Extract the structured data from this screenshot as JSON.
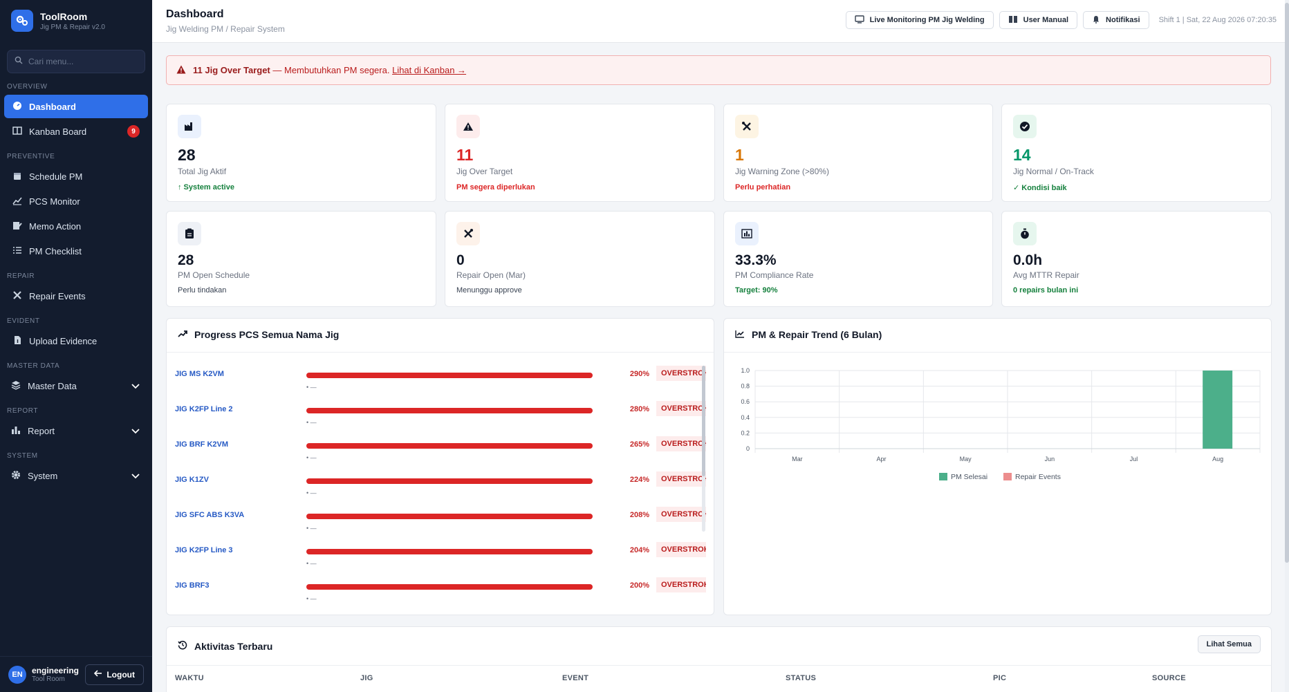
{
  "brand": {
    "title": "ToolRoom",
    "subtitle": "Jig PM & Repair v2.0"
  },
  "search": {
    "placeholder": "Cari menu..."
  },
  "nav": {
    "overview_label": "OVERVIEW",
    "dashboard": "Dashboard",
    "kanban": "Kanban Board",
    "kanban_badge": "9",
    "preventive_label": "PREVENTIVE",
    "schedule_pm": "Schedule PM",
    "pcs_monitor": "PCS Monitor",
    "memo_action": "Memo Action",
    "pm_checklist": "PM Checklist",
    "repair_label": "REPAIR",
    "repair_events": "Repair Events",
    "evident_label": "EVIDENT",
    "upload_evidence": "Upload Evidence",
    "master_label": "MASTER DATA",
    "master_data": "Master Data",
    "report_label": "REPORT",
    "report": "Report",
    "system_label": "SYSTEM",
    "system": "System"
  },
  "user": {
    "initials": "EN",
    "name": "engineering",
    "role": "Tool Room",
    "logout": "Logout"
  },
  "header": {
    "title": "Dashboard",
    "subtitle": "Jig Welding PM / Repair System",
    "live_btn": "Live Monitoring PM Jig Welding",
    "manual_btn": "User Manual",
    "notif_btn": "Notifikasi",
    "shift": "Shift 1 | Sat, 22 Aug 2026 07:20:35"
  },
  "alert": {
    "strong": "11 Jig Over Target",
    "text": " — Membutuhkan PM segera. ",
    "link": "Lihat di Kanban →"
  },
  "stats": [
    {
      "value": "28",
      "label": "Total Jig Aktif",
      "note": "↑ System active",
      "icon": "factory-icon",
      "value_color": "#111827",
      "note_color": "#15803d"
    },
    {
      "value": "11",
      "label": "Jig Over Target",
      "note": "PM segera diperlukan",
      "icon": "warning-icon",
      "value_color": "#dc2626",
      "note_color": "#dc2626"
    },
    {
      "value": "1",
      "label": "Jig Warning Zone (>80%)",
      "note": "Perlu perhatian",
      "icon": "tools-icon",
      "value_color": "#d97706",
      "note_color": "#dc2626"
    },
    {
      "value": "14",
      "label": "Jig Normal / On-Track",
      "note": "✓ Kondisi baik",
      "icon": "check-circle-icon",
      "value_color": "#059669",
      "note_color": "#15803d"
    },
    {
      "value": "28",
      "label": "PM Open Schedule",
      "note": "Perlu tindakan",
      "icon": "clipboard-icon",
      "value_color": "#111827",
      "note_color": "#374151"
    },
    {
      "value": "0",
      "label": "Repair Open (Mar)",
      "note": "Menunggu approve",
      "icon": "wrench-icon",
      "value_color": "#111827",
      "note_color": "#374151"
    },
    {
      "value": "33.3%",
      "label": "PM Compliance Rate",
      "note": "Target: 90%",
      "icon": "bar-chart-icon",
      "value_color": "#111827",
      "note_color": "#15803d"
    },
    {
      "value": "0.0h",
      "label": "Avg MTTR Repair",
      "note": "0 repairs bulan ini",
      "icon": "stopwatch-icon",
      "value_color": "#111827",
      "note_color": "#15803d"
    }
  ],
  "pcs": {
    "title": "Progress PCS Semua Nama Jig",
    "rows": [
      {
        "name": "JIG MS K2VM",
        "pct": "290%",
        "status": "OVERSTROKE",
        "dash": "• —",
        "progress": 2.9
      },
      {
        "name": "JIG K2FP Line 2",
        "pct": "280%",
        "status": "OVERSTROKE",
        "dash": "• —",
        "progress": 2.8
      },
      {
        "name": "JIG BRF K2VM",
        "pct": "265%",
        "status": "OVERSTROKE",
        "dash": "• —",
        "progress": 2.65
      },
      {
        "name": "JIG K1ZV",
        "pct": "224%",
        "status": "OVERSTROKE",
        "dash": "• —",
        "progress": 2.24
      },
      {
        "name": "JIG SFC ABS K3VA",
        "pct": "208%",
        "status": "OVERSTROKE",
        "dash": "• —",
        "progress": 2.08
      },
      {
        "name": "JIG K2FP Line 3",
        "pct": "204%",
        "status": "OVERSTROKE",
        "dash": "• —",
        "progress": 2.04
      },
      {
        "name": "JIG BRF3",
        "pct": "200%",
        "status": "OVERSTROKE",
        "dash": "• —",
        "progress": 2.0
      }
    ]
  },
  "trend": {
    "title": "PM & Repair Trend (6 Bulan)"
  },
  "chart_data": {
    "type": "bar",
    "categories": [
      "Mar",
      "Apr",
      "May",
      "Jun",
      "Jul",
      "Aug"
    ],
    "series": [
      {
        "name": "PM Selesai",
        "values": [
          0,
          0,
          0,
          0,
          0,
          1
        ],
        "color": "#4caf8a"
      },
      {
        "name": "Repair Events",
        "values": [
          0,
          0,
          0,
          0,
          0,
          0
        ],
        "color": "#ec8d8d"
      }
    ],
    "yticks": [
      "1.0",
      "0.8",
      "0.6",
      "0.4",
      "0.2",
      "0"
    ],
    "ylim": [
      0,
      1
    ],
    "grid": true,
    "legend": "bottom"
  },
  "activity": {
    "title": "Aktivitas Terbaru",
    "see_all": "Lihat Semua",
    "columns": [
      "WAKTU",
      "JIG",
      "EVENT",
      "STATUS",
      "PIC",
      "SOURCE"
    ]
  }
}
